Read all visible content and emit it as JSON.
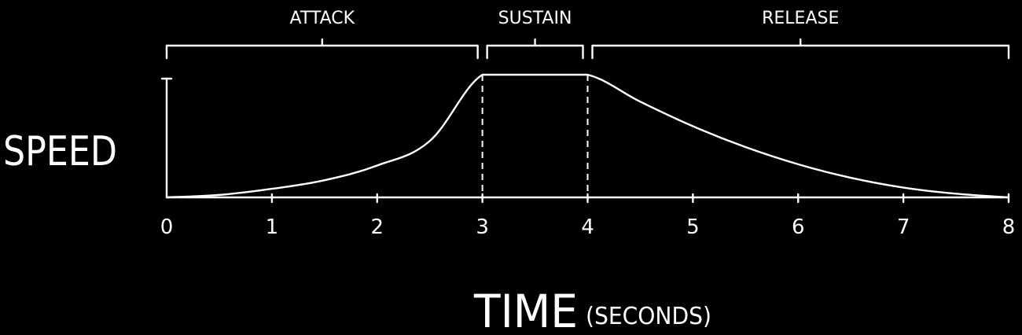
{
  "chart_data": {
    "type": "line",
    "ylabel": "SPEED",
    "xlabel": "TIME",
    "xlabel_unit": "(SECONDS)",
    "xlim": [
      0,
      8
    ],
    "ylim": [
      0,
      1
    ],
    "x_ticks": [
      "0",
      "1",
      "2",
      "3",
      "4",
      "5",
      "6",
      "7",
      "8"
    ],
    "phases": [
      {
        "label": "ATTACK",
        "start": 0,
        "end": 3
      },
      {
        "label": "SUSTAIN",
        "start": 3,
        "end": 4
      },
      {
        "label": "RELEASE",
        "start": 4,
        "end": 8
      }
    ],
    "series": [
      {
        "x": [
          0,
          0.5,
          1,
          1.5,
          2,
          2.5,
          3,
          3.5,
          4,
          4.5,
          5,
          5.5,
          6,
          6.5,
          7,
          7.5,
          8
        ],
        "y": [
          0,
          0.02,
          0.07,
          0.14,
          0.26,
          0.46,
          1,
          1,
          1,
          0.78,
          0.58,
          0.41,
          0.27,
          0.16,
          0.08,
          0.03,
          0
        ]
      }
    ],
    "grid": false,
    "colors": {
      "background": "#000000",
      "line": "#ffffff"
    }
  }
}
